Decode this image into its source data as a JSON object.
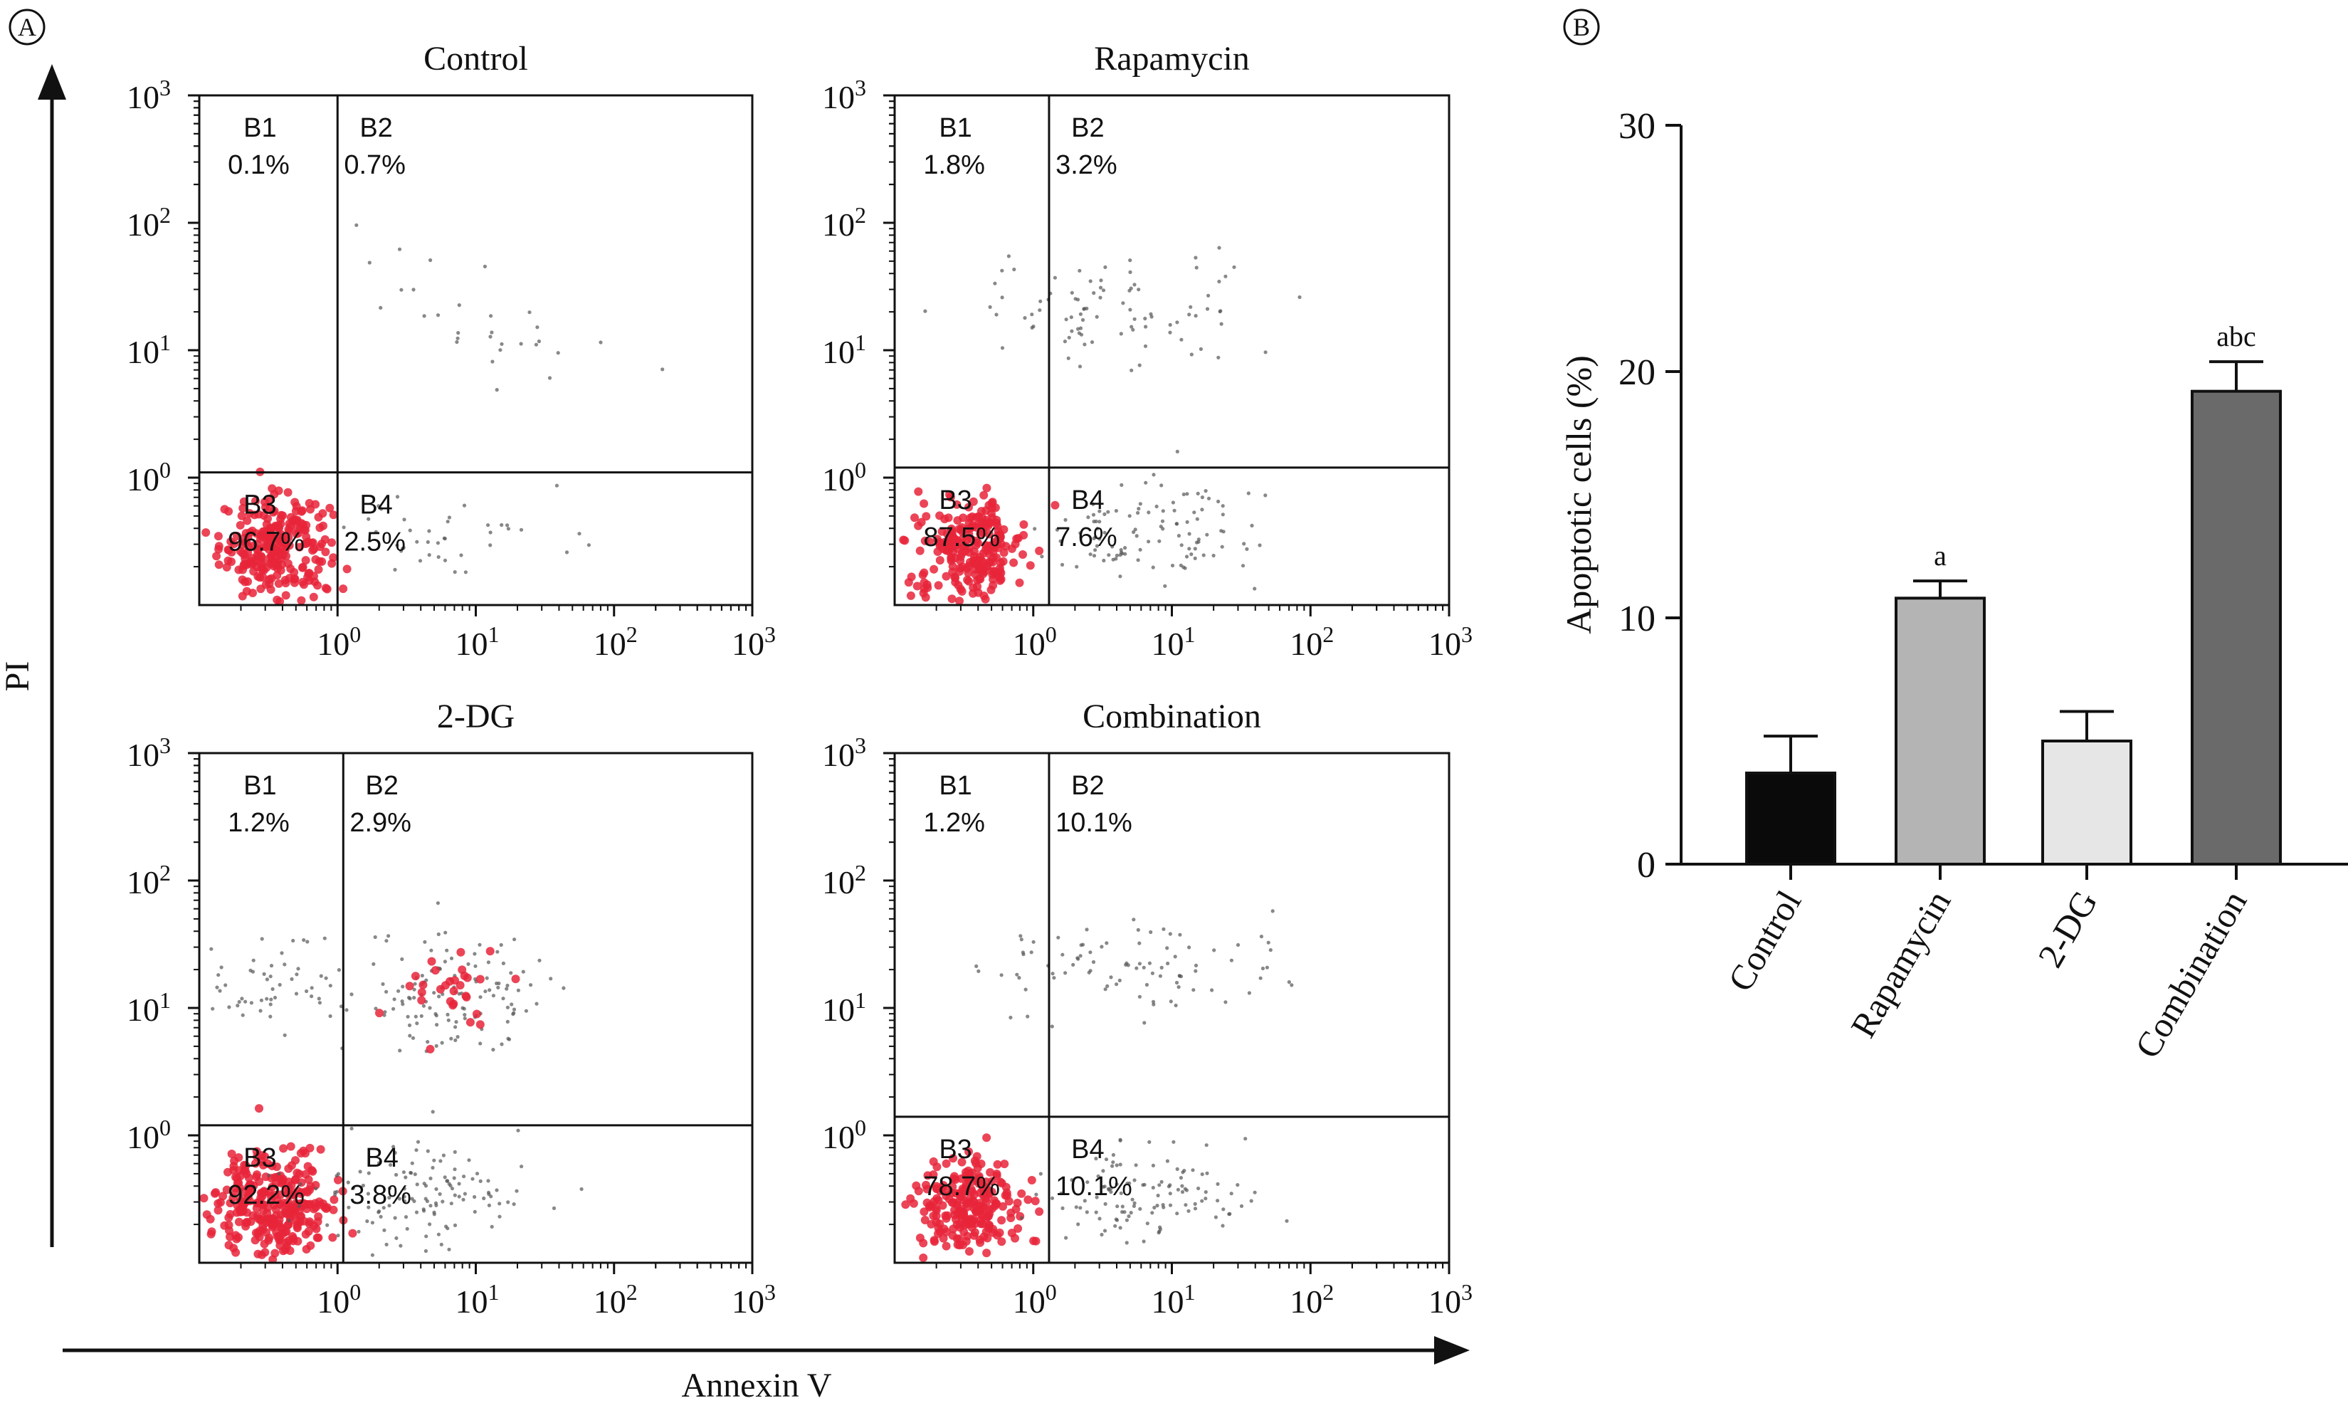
{
  "panel_a": {
    "label": "A",
    "y_axis_label": "PI",
    "x_axis_label": "Annexin V",
    "tick_base": "10",
    "tick_exponents": [
      "0",
      "1",
      "2",
      "3"
    ]
  },
  "panel_b": {
    "label": "B"
  },
  "colors": {
    "dots_dense": "#e8253a",
    "dots_sparse": "#555555",
    "bar_control": "#0a0a0a",
    "bar_rapamycin": "#b4b4b4",
    "bar_2dg": "#e6e6e6",
    "bar_combination": "#6a6a6a"
  },
  "chart_data": [
    {
      "type": "scatter",
      "title": "Control",
      "x_scale": "log",
      "y_scale": "log",
      "xlim": [
        0.1,
        1000
      ],
      "ylim": [
        0.1,
        1000
      ],
      "gate_x": 1.0,
      "gate_y": 1.1,
      "quadrants": [
        {
          "name": "B1",
          "percent": "0.1%"
        },
        {
          "name": "B2",
          "percent": "0.7%"
        },
        {
          "name": "B3",
          "percent": "96.7%"
        },
        {
          "name": "B4",
          "percent": "2.5%"
        }
      ]
    },
    {
      "type": "scatter",
      "title": "Rapamycin",
      "x_scale": "log",
      "y_scale": "log",
      "xlim": [
        0.1,
        1000
      ],
      "ylim": [
        0.1,
        1000
      ],
      "gate_x": 1.3,
      "gate_y": 1.2,
      "quadrants": [
        {
          "name": "B1",
          "percent": "1.8%"
        },
        {
          "name": "B2",
          "percent": "3.2%"
        },
        {
          "name": "B3",
          "percent": "87.5%"
        },
        {
          "name": "B4",
          "percent": "7.6%"
        }
      ]
    },
    {
      "type": "scatter",
      "title": "2-DG",
      "x_scale": "log",
      "y_scale": "log",
      "xlim": [
        0.1,
        1000
      ],
      "ylim": [
        0.1,
        1000
      ],
      "gate_x": 1.1,
      "gate_y": 1.2,
      "quadrants": [
        {
          "name": "B1",
          "percent": "1.2%"
        },
        {
          "name": "B2",
          "percent": "2.9%"
        },
        {
          "name": "B3",
          "percent": "92.2%"
        },
        {
          "name": "B4",
          "percent": "3.8%"
        }
      ]
    },
    {
      "type": "scatter",
      "title": "Combination",
      "x_scale": "log",
      "y_scale": "log",
      "xlim": [
        0.1,
        1000
      ],
      "ylim": [
        0.1,
        1000
      ],
      "gate_x": 1.3,
      "gate_y": 1.4,
      "quadrants": [
        {
          "name": "B1",
          "percent": "1.2%"
        },
        {
          "name": "B2",
          "percent": "10.1%"
        },
        {
          "name": "B3",
          "percent": "78.7%"
        },
        {
          "name": "B4",
          "percent": "10.1%"
        }
      ]
    },
    {
      "type": "bar",
      "title": "",
      "xlabel": "",
      "ylabel": "Apoptotic cells (%)",
      "ylim": [
        0,
        30
      ],
      "yticks": [
        "0",
        "10",
        "20",
        "30"
      ],
      "categories": [
        "Control",
        "Rapamycin",
        "2-DG",
        "Combination"
      ],
      "values": [
        3.7,
        10.8,
        5.0,
        19.2
      ],
      "errors": [
        1.5,
        0.7,
        1.2,
        1.2
      ],
      "annotations": [
        "",
        "a",
        "",
        "abc"
      ]
    }
  ]
}
